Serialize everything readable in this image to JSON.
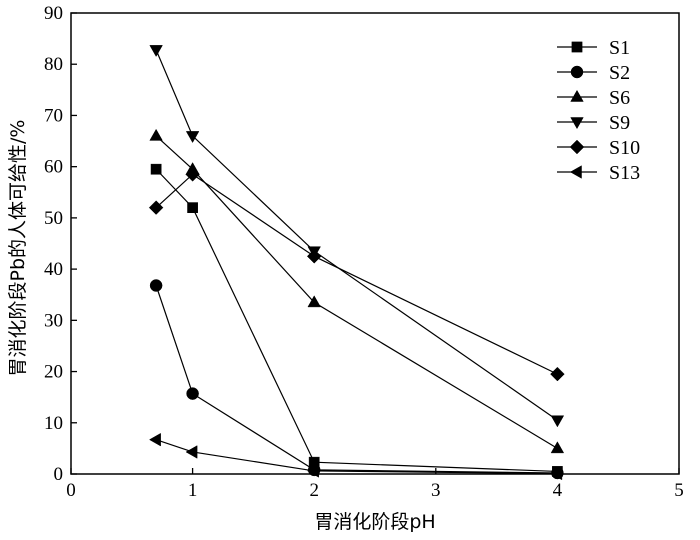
{
  "chart_data": {
    "type": "line",
    "title": "",
    "xlabel": "胃消化阶段pH",
    "ylabel": "胃消化阶段Pb的人体可给性/%",
    "xlim": [
      0,
      5
    ],
    "ylim": [
      0,
      90
    ],
    "xticks": [
      0,
      1,
      2,
      3,
      4,
      5
    ],
    "yticks": [
      0,
      10,
      20,
      30,
      40,
      50,
      60,
      70,
      80,
      90
    ],
    "grid": false,
    "legend_position": "top-right",
    "series": [
      {
        "name": "S1",
        "marker": "square",
        "x": [
          0.7,
          1,
          2,
          4
        ],
        "values": [
          59.5,
          52,
          2.3,
          0.5
        ]
      },
      {
        "name": "S2",
        "marker": "circle",
        "x": [
          0.7,
          1,
          2,
          4
        ],
        "values": [
          36.8,
          15.7,
          0.8,
          0.2
        ]
      },
      {
        "name": "S6",
        "marker": "triangle-up",
        "x": [
          0.7,
          1,
          2,
          4
        ],
        "values": [
          66,
          59.5,
          33.5,
          5
        ]
      },
      {
        "name": "S9",
        "marker": "triangle-down",
        "x": [
          0.7,
          1,
          2,
          4
        ],
        "values": [
          82.8,
          66,
          43.5,
          10.5
        ]
      },
      {
        "name": "S10",
        "marker": "diamond",
        "x": [
          0.7,
          1,
          2,
          4
        ],
        "values": [
          52,
          58.5,
          42.5,
          19.5
        ]
      },
      {
        "name": "S13",
        "marker": "triangle-left",
        "x": [
          0.7,
          1,
          2,
          4
        ],
        "values": [
          6.7,
          4.3,
          0.6,
          0.1
        ]
      }
    ]
  }
}
